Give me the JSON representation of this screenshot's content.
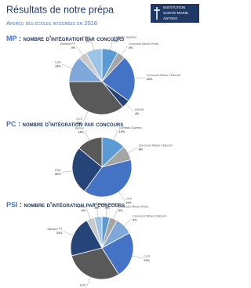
{
  "header": {
    "title": "Résultats de notre prépa",
    "subtitle": "Aperçu des écoles intégrées en 2016",
    "logo": [
      "INSTITUTION",
      "SAINTE-MARIE",
      "ANTONY"
    ]
  },
  "chart_data": [
    {
      "type": "pie",
      "title": "MP",
      "subtitle": " : nombre d'intégration par concours",
      "categories": [
        "Centrale-Supélec",
        "Concours Mines-Ponts",
        "Concours Mines-Télécom",
        "X/ENS",
        "CCP",
        "E3A",
        "Banque PT",
        "Autres"
      ],
      "values": [
        8,
        4,
        23,
        4,
        36,
        13,
        4,
        8
      ],
      "value_labels": [
        "8%",
        "4%",
        "23%",
        "4%",
        "36%",
        "13%",
        "4%",
        "8%"
      ],
      "colors": [
        "#5b9bd5",
        "#a5a5a5",
        "#4472c4",
        "#264478",
        "#595959",
        "#7fa7d9",
        "#c9c9c9",
        "#9dc3e6"
      ]
    },
    {
      "type": "pie",
      "title": "PC",
      "subtitle": " : nombre d'intégration par concours",
      "categories": [
        "Centrale-Supélec",
        "Concours Mines-Télécom",
        "CCP",
        "E3A",
        "Autres"
      ],
      "values": [
        13,
        8,
        39,
        26,
        14
      ],
      "value_labels": [
        "13%",
        "8%",
        "39%",
        "26%",
        "14%"
      ],
      "colors": [
        "#5b9bd5",
        "#a5a5a5",
        "#4472c4",
        "#264478",
        "#595959"
      ]
    },
    {
      "type": "pie",
      "title": "PSI",
      "subtitle": " : nombre d'intégration par concours",
      "categories": [
        "Centrale-Supélec",
        "Concours Mines-Ponts",
        "Concours Mines-Télécom",
        "CCP",
        "E3A",
        "Banque PT",
        "X/ENS",
        "Autres"
      ],
      "values": [
        4,
        4,
        9,
        24,
        30,
        21,
        4,
        4
      ],
      "value_labels": [
        "4%",
        "4%",
        "9%",
        "24%",
        "30%",
        "21%",
        "4%",
        "4%"
      ],
      "colors": [
        "#5b9bd5",
        "#a5a5a5",
        "#7fa7d9",
        "#4472c4",
        "#595959",
        "#264478",
        "#c9c9c9",
        "#9dc3e6"
      ]
    }
  ]
}
